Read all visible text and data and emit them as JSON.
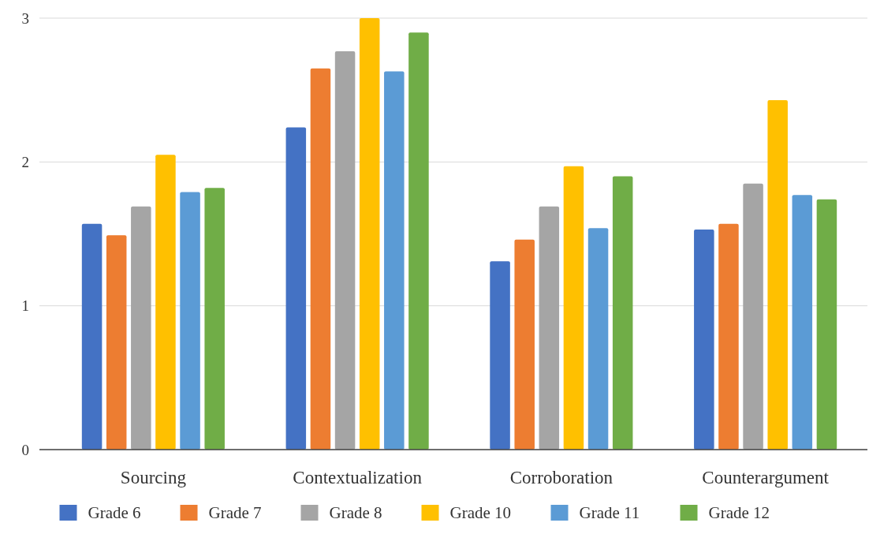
{
  "chart_data": {
    "type": "bar",
    "categories": [
      "Sourcing",
      "Contextualization",
      "Corroboration",
      "Counterargument"
    ],
    "series": [
      {
        "name": "Grade 6",
        "color": "#4472c4",
        "values": [
          1.57,
          2.24,
          1.31,
          1.53
        ]
      },
      {
        "name": "Grade 7",
        "color": "#ed7d31",
        "values": [
          1.49,
          2.65,
          1.46,
          1.57
        ]
      },
      {
        "name": "Grade 8",
        "color": "#a5a5a5",
        "values": [
          1.69,
          2.77,
          1.69,
          1.85
        ]
      },
      {
        "name": "Grade 10",
        "color": "#ffc000",
        "values": [
          2.05,
          3.0,
          1.97,
          2.43
        ]
      },
      {
        "name": "Grade 11",
        "color": "#5b9bd5",
        "values": [
          1.79,
          2.63,
          1.54,
          1.77
        ]
      },
      {
        "name": "Grade 12",
        "color": "#70ad47",
        "values": [
          1.82,
          2.9,
          1.9,
          1.74
        ]
      }
    ],
    "ylim": [
      0,
      3
    ],
    "yticks": [
      0,
      1,
      2,
      3
    ],
    "grid": "y",
    "legend": "bottom"
  }
}
